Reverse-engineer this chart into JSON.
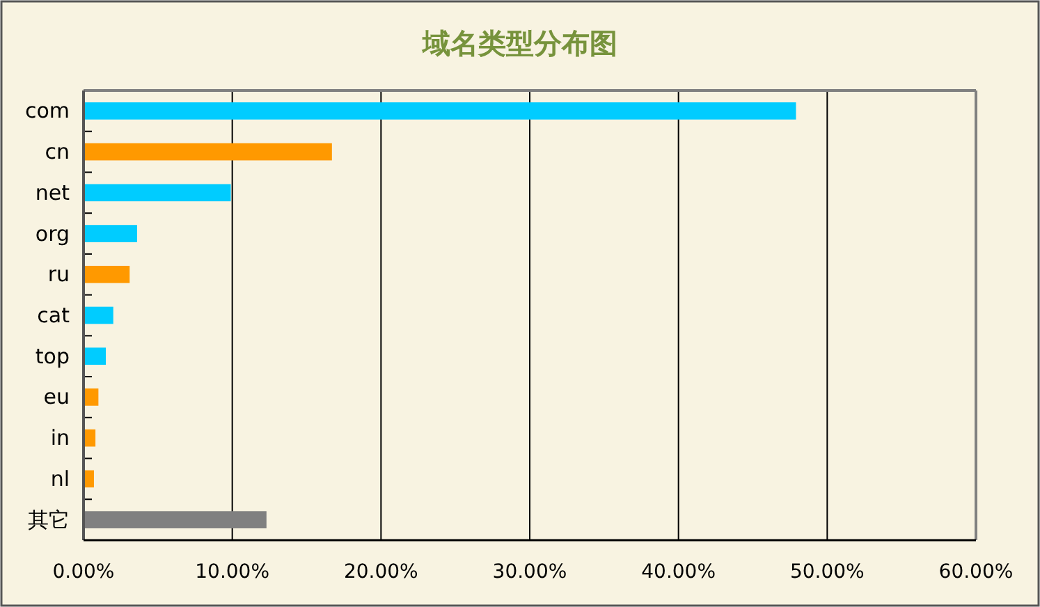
{
  "chart_data": {
    "type": "bar",
    "orientation": "horizontal",
    "title": "域名类型分布图",
    "categories": [
      "com",
      "cn",
      "net",
      "org",
      "ru",
      "cat",
      "top",
      "eu",
      "in",
      "nl",
      "其它"
    ],
    "values": [
      47.9,
      16.7,
      9.9,
      3.6,
      3.1,
      2.0,
      1.5,
      1.0,
      0.8,
      0.7,
      12.3
    ],
    "colors": [
      "#00ccff",
      "#ff9900",
      "#00ccff",
      "#00ccff",
      "#ff9900",
      "#00ccff",
      "#00ccff",
      "#ff9900",
      "#ff9900",
      "#ff9900",
      "#808080"
    ],
    "xlim": [
      0,
      60
    ],
    "xticks": [
      {
        "value": 0,
        "label": "0.00%"
      },
      {
        "value": 10,
        "label": "10.00%"
      },
      {
        "value": 20,
        "label": "20.00%"
      },
      {
        "value": 30,
        "label": "30.00%"
      },
      {
        "value": 40,
        "label": "40.00%"
      },
      {
        "value": 50,
        "label": "50.00%"
      },
      {
        "value": 60,
        "label": "60.00%"
      }
    ],
    "grid": "x"
  }
}
